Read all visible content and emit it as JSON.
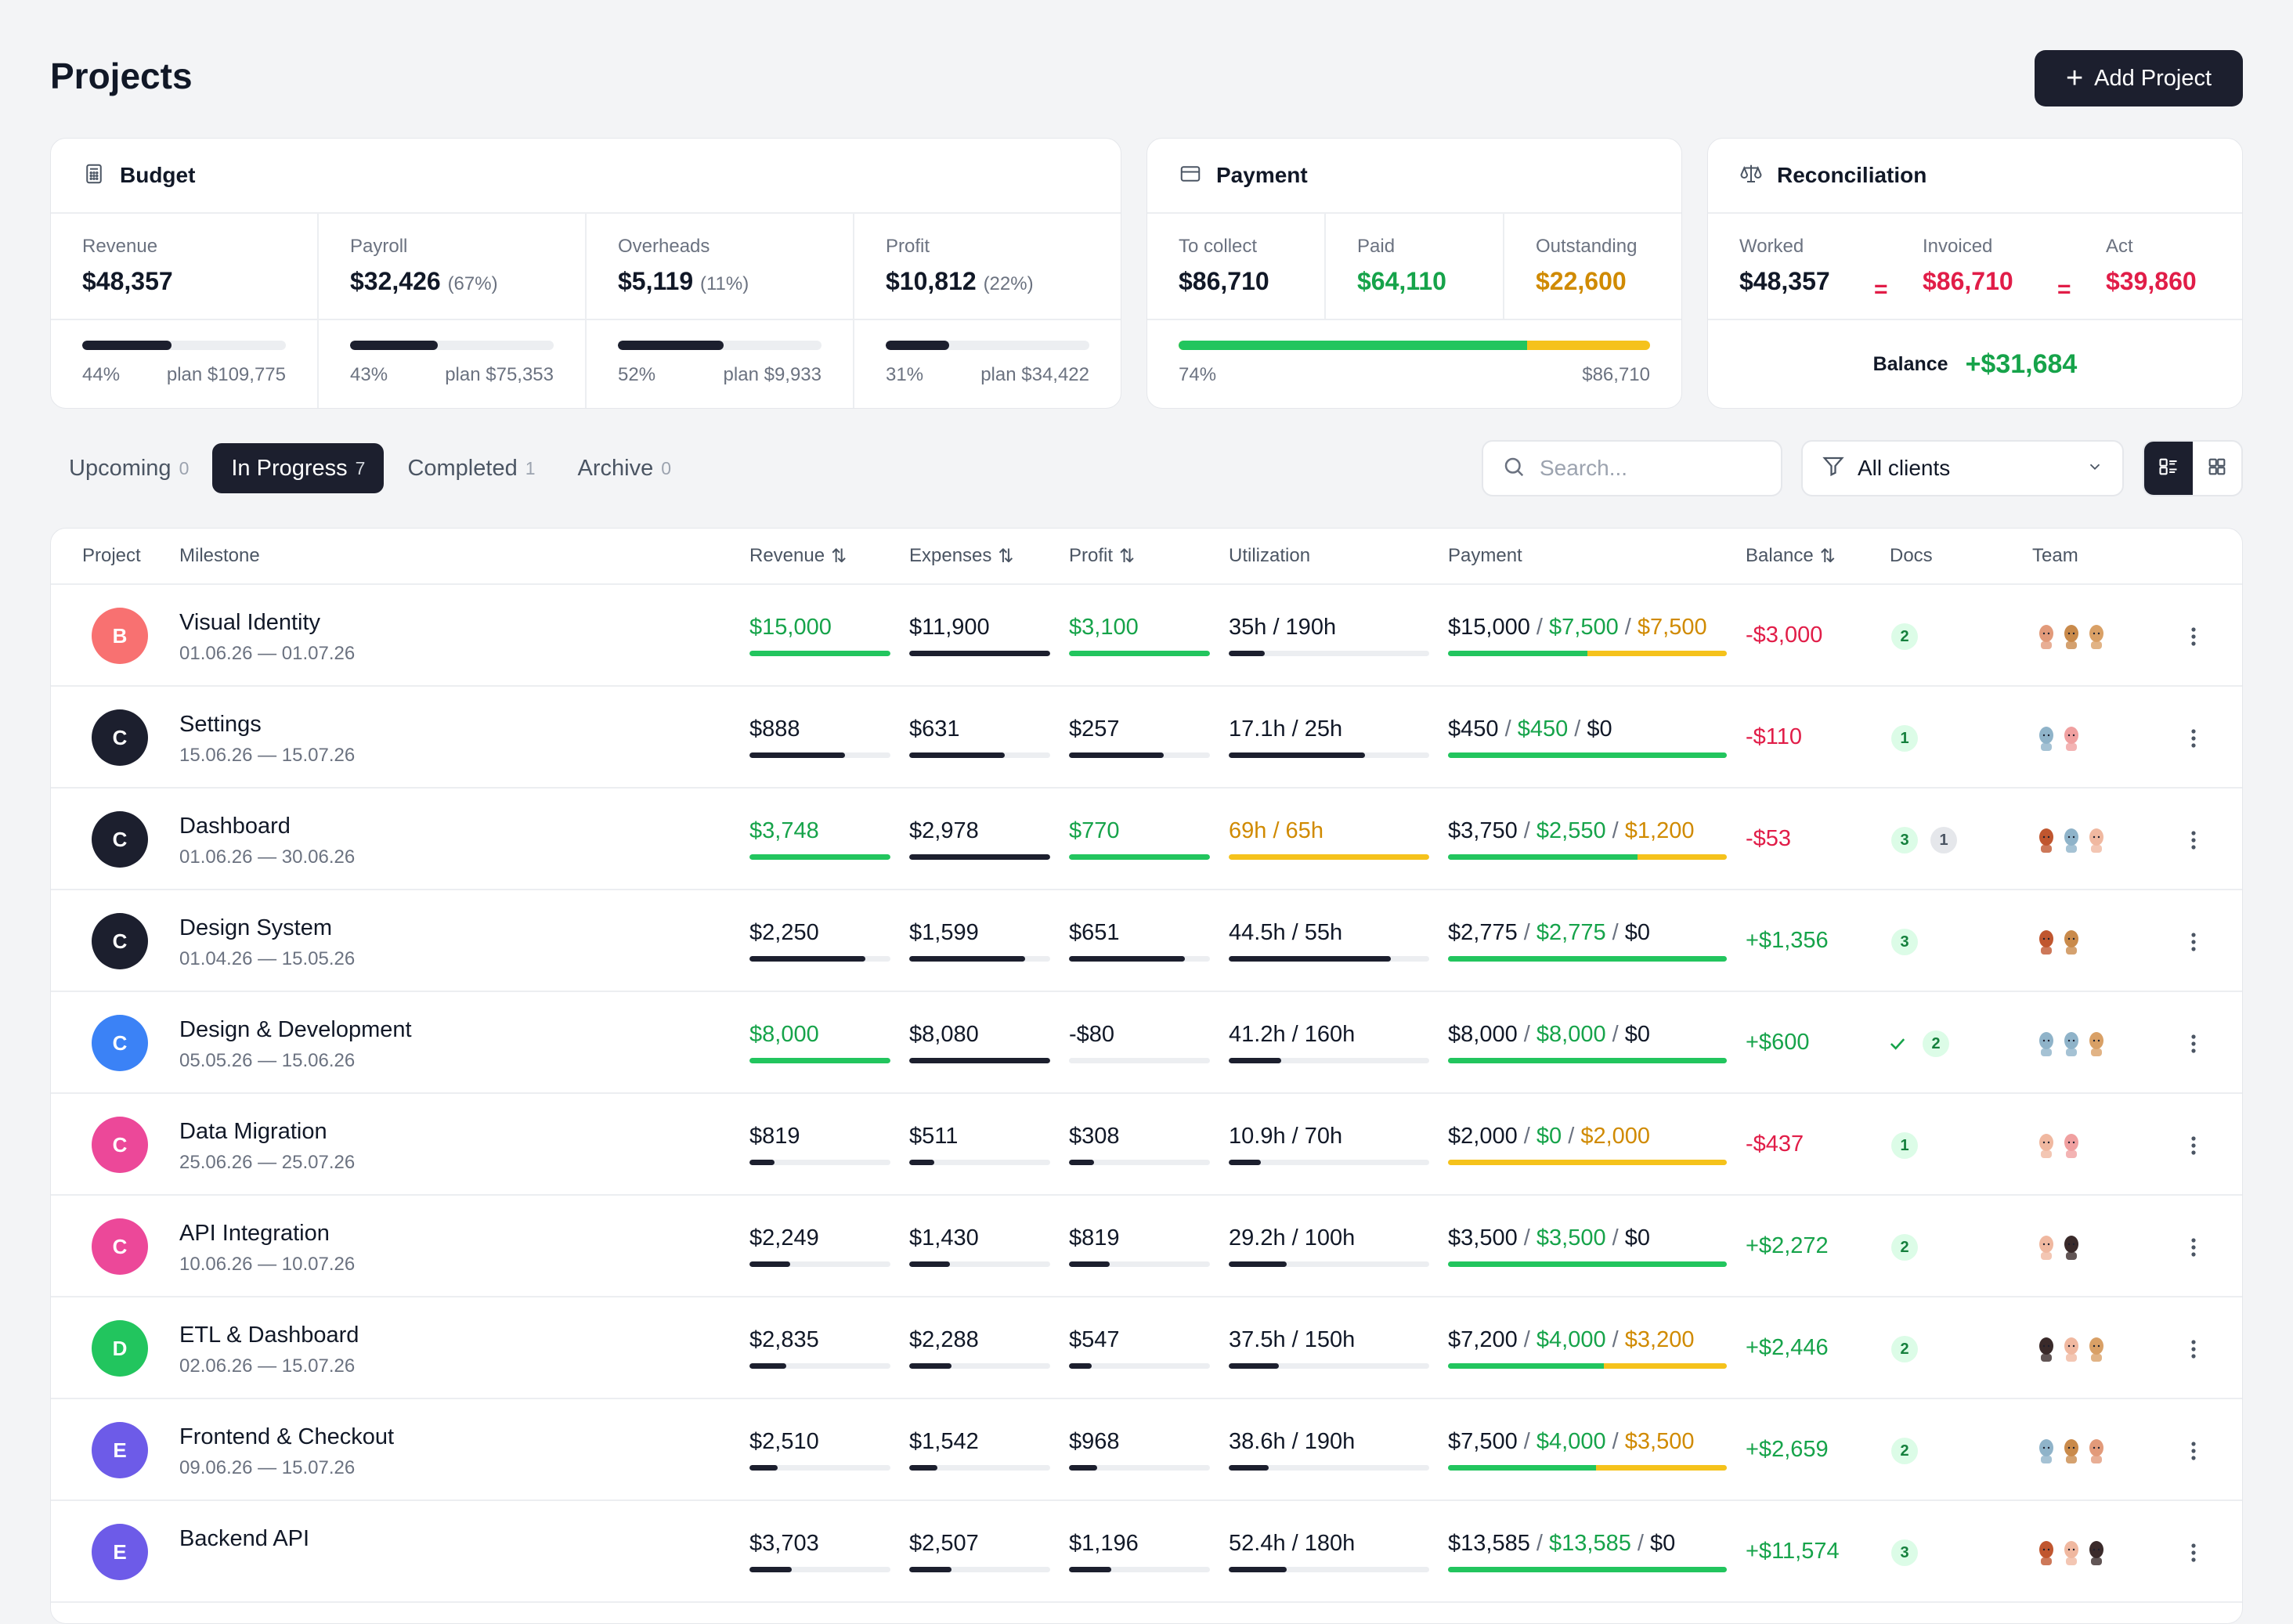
{
  "header": {
    "title": "Projects",
    "add_button_label": "Add Project"
  },
  "budget": {
    "title": "Budget",
    "metrics": [
      {
        "label": "Revenue",
        "value": "$48,357",
        "pct": "",
        "progress_pct": "44%",
        "progress": 0.44,
        "plan": "plan $109,775"
      },
      {
        "label": "Payroll",
        "value": "$32,426",
        "pct": "(67%)",
        "progress_pct": "43%",
        "progress": 0.43,
        "plan": "plan $75,353"
      },
      {
        "label": "Overheads",
        "value": "$5,119",
        "pct": "(11%)",
        "progress_pct": "52%",
        "progress": 0.52,
        "plan": "plan $9,933"
      },
      {
        "label": "Profit",
        "value": "$10,812",
        "pct": "(22%)",
        "progress_pct": "31%",
        "progress": 0.31,
        "plan": "plan $34,422"
      }
    ]
  },
  "payment": {
    "title": "Payment",
    "metrics": [
      {
        "label": "To collect",
        "value": "$86,710"
      },
      {
        "label": "Paid",
        "value": "$64,110"
      },
      {
        "label": "Outstanding",
        "value": "$22,600"
      }
    ],
    "progress_pct": "74%",
    "progress": 0.74,
    "total": "$86,710"
  },
  "reconciliation": {
    "title": "Reconciliation",
    "metrics": [
      {
        "label": "Worked",
        "value": "$48,357"
      },
      {
        "label": "Invoiced",
        "value": "$86,710"
      },
      {
        "label": "Act",
        "value": "$39,860"
      }
    ],
    "eq1": "=",
    "eq2": "=",
    "balance_label": "Balance",
    "balance_value": "+$31,684"
  },
  "tabs": [
    {
      "label": "Upcoming",
      "count": "0"
    },
    {
      "label": "In Progress",
      "count": "7"
    },
    {
      "label": "Completed",
      "count": "1"
    },
    {
      "label": "Archive",
      "count": "0"
    }
  ],
  "search": {
    "placeholder": "Search..."
  },
  "filter": {
    "value": "All clients"
  },
  "table": {
    "headers": {
      "project": "Project",
      "milestone": "Milestone",
      "revenue": "Revenue",
      "expenses": "Expenses",
      "profit": "Profit",
      "utilization": "Utilization",
      "payment": "Payment",
      "balance": "Balance",
      "docs": "Docs",
      "team": "Team"
    },
    "rows": [
      {
        "initial": "B",
        "color": "#f87171",
        "name": "Visual Identity",
        "dates": "01.06.26 — 01.07.26",
        "revenue": "$15,000",
        "rev_green": true,
        "rev_bar": 1.0,
        "expenses": "$11,900",
        "exp_bar": 1.0,
        "profit": "$3,100",
        "profit_green": true,
        "profit_bar": 1.0,
        "util": "35h / 190h",
        "util_orange": false,
        "util_bar": 0.18,
        "pay_total": "$15,000",
        "pay_paid": "$7,500",
        "pay_out": "$7,500",
        "pay_paid_frac": 0.5,
        "pay_out_frac": 0.5,
        "balance": "-$3,000",
        "balance_pos": false,
        "docs": [
          "2"
        ],
        "check": false,
        "team": [
          "#e29a7a",
          "#c98a4b",
          "#d9a066"
        ]
      },
      {
        "initial": "C",
        "color": "#1c1f2e",
        "name": "Settings",
        "dates": "15.06.26 — 15.07.26",
        "revenue": "$888",
        "rev_green": false,
        "rev_bar": 0.68,
        "expenses": "$631",
        "exp_bar": 0.68,
        "profit": "$257",
        "profit_green": false,
        "profit_bar": 0.67,
        "util": "17.1h / 25h",
        "util_orange": false,
        "util_bar": 0.68,
        "pay_total": "$450",
        "pay_paid": "$450",
        "pay_out": "$0",
        "pay_paid_frac": 1.0,
        "pay_out_frac": 0.0,
        "balance": "-$110",
        "balance_pos": false,
        "docs": [
          "1"
        ],
        "check": false,
        "team": [
          "#8fb3c9",
          "#f0a0a0"
        ]
      },
      {
        "initial": "C",
        "color": "#1c1f2e",
        "name": "Dashboard",
        "dates": "01.06.26 — 30.06.26",
        "revenue": "$3,748",
        "rev_green": true,
        "rev_bar": 1.0,
        "expenses": "$2,978",
        "exp_bar": 1.0,
        "profit": "$770",
        "profit_green": true,
        "profit_bar": 1.0,
        "util": "69h / 65h",
        "util_orange": true,
        "util_bar": 1.0,
        "pay_total": "$3,750",
        "pay_paid": "$2,550",
        "pay_out": "$1,200",
        "pay_paid_frac": 0.68,
        "pay_out_frac": 0.32,
        "balance": "-$53",
        "balance_pos": false,
        "docs": [
          "3",
          "1"
        ],
        "check": false,
        "team": [
          "#c0562f",
          "#8fb3c9",
          "#f0b8a0"
        ]
      },
      {
        "initial": "C",
        "color": "#1c1f2e",
        "name": "Design System",
        "dates": "01.04.26 — 15.05.26",
        "revenue": "$2,250",
        "rev_green": false,
        "rev_bar": 0.82,
        "expenses": "$1,599",
        "exp_bar": 0.82,
        "profit": "$651",
        "profit_green": false,
        "profit_bar": 0.82,
        "util": "44.5h / 55h",
        "util_orange": false,
        "util_bar": 0.81,
        "pay_total": "$2,775",
        "pay_paid": "$2,775",
        "pay_out": "$0",
        "pay_paid_frac": 1.0,
        "pay_out_frac": 0.0,
        "balance": "+$1,356",
        "balance_pos": true,
        "docs": [
          "3"
        ],
        "check": false,
        "team": [
          "#c0562f",
          "#c98a4b"
        ]
      },
      {
        "initial": "C",
        "color": "#3b82f6",
        "name": "Design & Development",
        "dates": "05.05.26 — 15.06.26",
        "revenue": "$8,000",
        "rev_green": true,
        "rev_bar": 1.0,
        "expenses": "$8,080",
        "exp_bar": 1.0,
        "profit": "-$80",
        "profit_green": false,
        "profit_bar": 0.0,
        "util": "41.2h / 160h",
        "util_orange": false,
        "util_bar": 0.26,
        "pay_total": "$8,000",
        "pay_paid": "$8,000",
        "pay_out": "$0",
        "pay_paid_frac": 1.0,
        "pay_out_frac": 0.0,
        "balance": "+$600",
        "balance_pos": true,
        "docs": [
          "2"
        ],
        "check": true,
        "team": [
          "#8fb3c9",
          "#8fb3c9",
          "#d9a066"
        ]
      },
      {
        "initial": "C",
        "color": "#ec4899",
        "name": "Data Migration",
        "dates": "25.06.26 — 25.07.26",
        "revenue": "$819",
        "rev_green": false,
        "rev_bar": 0.18,
        "expenses": "$511",
        "exp_bar": 0.18,
        "profit": "$308",
        "profit_green": false,
        "profit_bar": 0.18,
        "util": "10.9h / 70h",
        "util_orange": false,
        "util_bar": 0.16,
        "pay_total": "$2,000",
        "pay_paid": "$0",
        "pay_out": "$2,000",
        "pay_paid_frac": 0.0,
        "pay_out_frac": 1.0,
        "balance": "-$437",
        "balance_pos": false,
        "docs": [
          "1"
        ],
        "check": false,
        "team": [
          "#f0b8a0",
          "#f0a0a0"
        ]
      },
      {
        "initial": "C",
        "color": "#ec4899",
        "name": "API Integration",
        "dates": "10.06.26 — 10.07.26",
        "revenue": "$2,249",
        "rev_green": false,
        "rev_bar": 0.29,
        "expenses": "$1,430",
        "exp_bar": 0.29,
        "profit": "$819",
        "profit_green": false,
        "profit_bar": 0.29,
        "util": "29.2h / 100h",
        "util_orange": false,
        "util_bar": 0.29,
        "pay_total": "$3,500",
        "pay_paid": "$3,500",
        "pay_out": "$0",
        "pay_paid_frac": 1.0,
        "pay_out_frac": 0.0,
        "balance": "+$2,272",
        "balance_pos": true,
        "docs": [
          "2"
        ],
        "check": false,
        "team": [
          "#f0b8a0",
          "#3a2a2a"
        ]
      },
      {
        "initial": "D",
        "color": "#22c55e",
        "name": "ETL & Dashboard",
        "dates": "02.06.26 — 15.07.26",
        "revenue": "$2,835",
        "rev_green": false,
        "rev_bar": 0.26,
        "expenses": "$2,288",
        "exp_bar": 0.3,
        "profit": "$547",
        "profit_green": false,
        "profit_bar": 0.16,
        "util": "37.5h / 150h",
        "util_orange": false,
        "util_bar": 0.25,
        "pay_total": "$7,200",
        "pay_paid": "$4,000",
        "pay_out": "$3,200",
        "pay_paid_frac": 0.56,
        "pay_out_frac": 0.44,
        "balance": "+$2,446",
        "balance_pos": true,
        "docs": [
          "2"
        ],
        "check": false,
        "team": [
          "#3a2a2a",
          "#f0b8a0",
          "#d9a066"
        ]
      },
      {
        "initial": "E",
        "color": "#6d5be8",
        "name": "Frontend & Checkout",
        "dates": "09.06.26 — 15.07.26",
        "revenue": "$2,510",
        "rev_green": false,
        "rev_bar": 0.2,
        "expenses": "$1,542",
        "exp_bar": 0.2,
        "profit": "$968",
        "profit_green": false,
        "profit_bar": 0.2,
        "util": "38.6h / 190h",
        "util_orange": false,
        "util_bar": 0.2,
        "pay_total": "$7,500",
        "pay_paid": "$4,000",
        "pay_out": "$3,500",
        "pay_paid_frac": 0.53,
        "pay_out_frac": 0.47,
        "balance": "+$2,659",
        "balance_pos": true,
        "docs": [
          "2"
        ],
        "check": false,
        "team": [
          "#8fb3c9",
          "#c98a4b",
          "#e29a7a"
        ]
      },
      {
        "initial": "E",
        "color": "#6d5be8",
        "name": "Backend API",
        "dates": "",
        "revenue": "$3,703",
        "rev_green": false,
        "rev_bar": 0.3,
        "expenses": "$2,507",
        "exp_bar": 0.3,
        "profit": "$1,196",
        "profit_green": false,
        "profit_bar": 0.3,
        "util": "52.4h / 180h",
        "util_orange": false,
        "util_bar": 0.29,
        "pay_total": "$13,585",
        "pay_paid": "$13,585",
        "pay_out": "$0",
        "pay_paid_frac": 1.0,
        "pay_out_frac": 0.0,
        "balance": "+$11,574",
        "balance_pos": true,
        "docs": [
          "3"
        ],
        "check": false,
        "team": [
          "#c0562f",
          "#f0b8a0",
          "#3a2a2a"
        ]
      }
    ]
  }
}
